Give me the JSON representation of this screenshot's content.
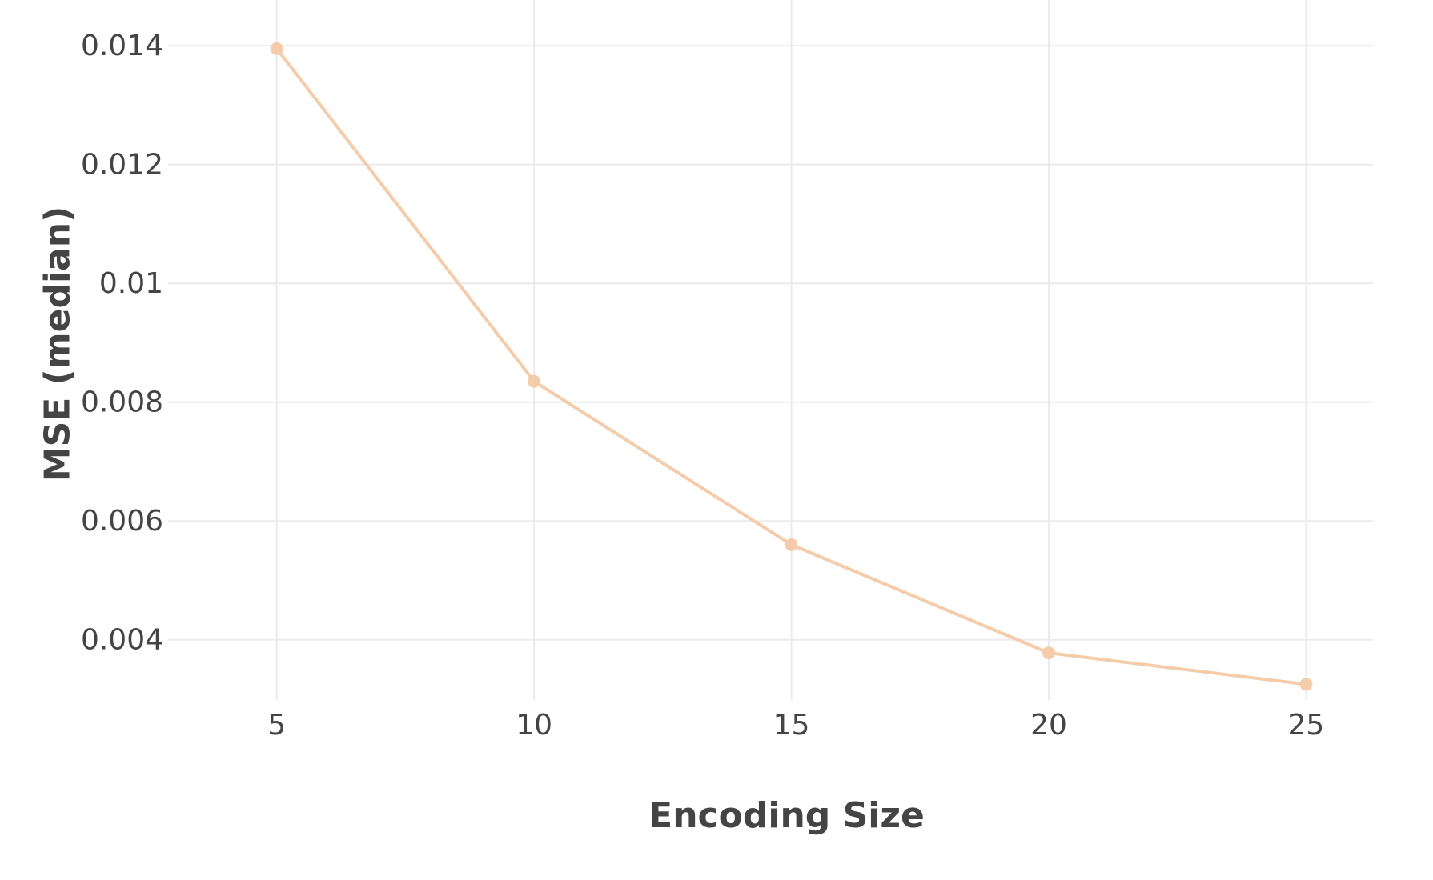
{
  "chart_data": {
    "type": "line",
    "xlabel": "Encoding Size",
    "ylabel": "MSE (median)",
    "x": [
      5,
      10,
      15,
      20,
      25
    ],
    "series": [
      {
        "values": [
          0.01395,
          0.00835,
          0.0056,
          0.00378,
          0.00325
        ],
        "color": "#f5ccaa"
      }
    ],
    "xlim": [
      3.2,
      26.3
    ],
    "ylim": [
      0.00265,
      0.0145
    ],
    "x_ticks": [
      {
        "value": 5,
        "label": "5"
      },
      {
        "value": 10,
        "label": "10"
      },
      {
        "value": 15,
        "label": "15"
      },
      {
        "value": 20,
        "label": "20"
      },
      {
        "value": 25,
        "label": "25"
      }
    ],
    "y_ticks": [
      {
        "value": 0.004,
        "label": "0.004"
      },
      {
        "value": 0.006,
        "label": "0.006"
      },
      {
        "value": 0.008,
        "label": "0.008"
      },
      {
        "value": 0.01,
        "label": "0.01"
      },
      {
        "value": 0.012,
        "label": "0.012"
      },
      {
        "value": 0.014,
        "label": "0.014"
      }
    ],
    "grid": true,
    "legend": "none"
  }
}
